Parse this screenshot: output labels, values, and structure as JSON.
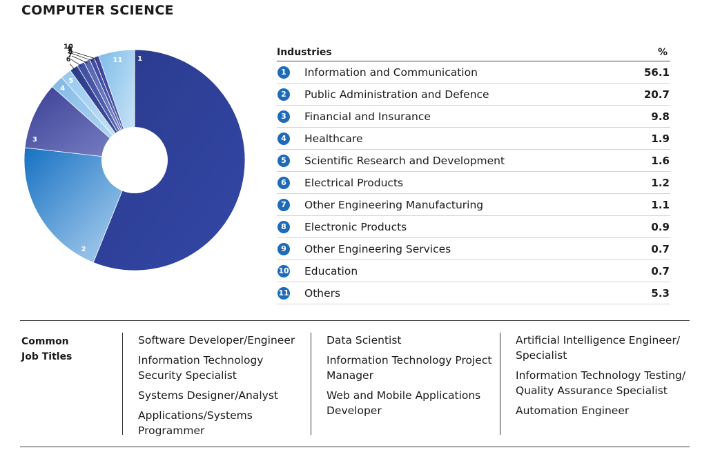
{
  "title": "COMPUTER SCIENCE",
  "table": {
    "header_industries": "Industries",
    "header_pct": "%"
  },
  "chart_data": {
    "type": "pie",
    "categories": [
      "Information and Communication",
      "Public Administration and Defence",
      "Financial and Insurance",
      "Healthcare",
      "Scientific Research and Development",
      "Electrical Products",
      "Other Engineering Manufacturing",
      "Electronic Products",
      "Other Engineering Services",
      "Education",
      "Others"
    ],
    "numbers": [
      "1",
      "2",
      "3",
      "4",
      "5",
      "6",
      "7",
      "8",
      "9",
      "10",
      "11"
    ],
    "values": [
      56.1,
      20.7,
      9.8,
      1.9,
      1.6,
      1.2,
      1.1,
      0.9,
      0.7,
      0.7,
      5.3
    ],
    "value_labels": [
      "56.1",
      "20.7",
      "9.8",
      "1.9",
      "1.6",
      "1.2",
      "1.1",
      "0.9",
      "0.7",
      "0.7",
      "5.3"
    ],
    "colors": [
      "#2b3a8a",
      "#1a73c4",
      "#3f3f98",
      "#8fc3ea",
      "#a8d2f2",
      "#2b3a8a",
      "#3a56a8",
      "#6f7cc4",
      "#5a5fb0",
      "#3f3f98",
      "#9fd0f2"
    ],
    "donut_hole": true
  },
  "jobs": {
    "heading": "Common\nJob Titles",
    "heading_line1": "Common",
    "heading_line2": "Job Titles",
    "col1": [
      "Software Developer/Engineer",
      "Information Technology Security Specialist",
      "Systems Designer/Analyst",
      "Applications/Systems Programmer"
    ],
    "col2": [
      "Data Scientist",
      "Information Technology Project Manager",
      "Web and Mobile Applications Developer"
    ],
    "col3": [
      "Artificial Intelligence Engineer/ Specialist",
      "Information Technology Testing/ Quality Assurance Specialist",
      "Automation Engineer"
    ]
  }
}
